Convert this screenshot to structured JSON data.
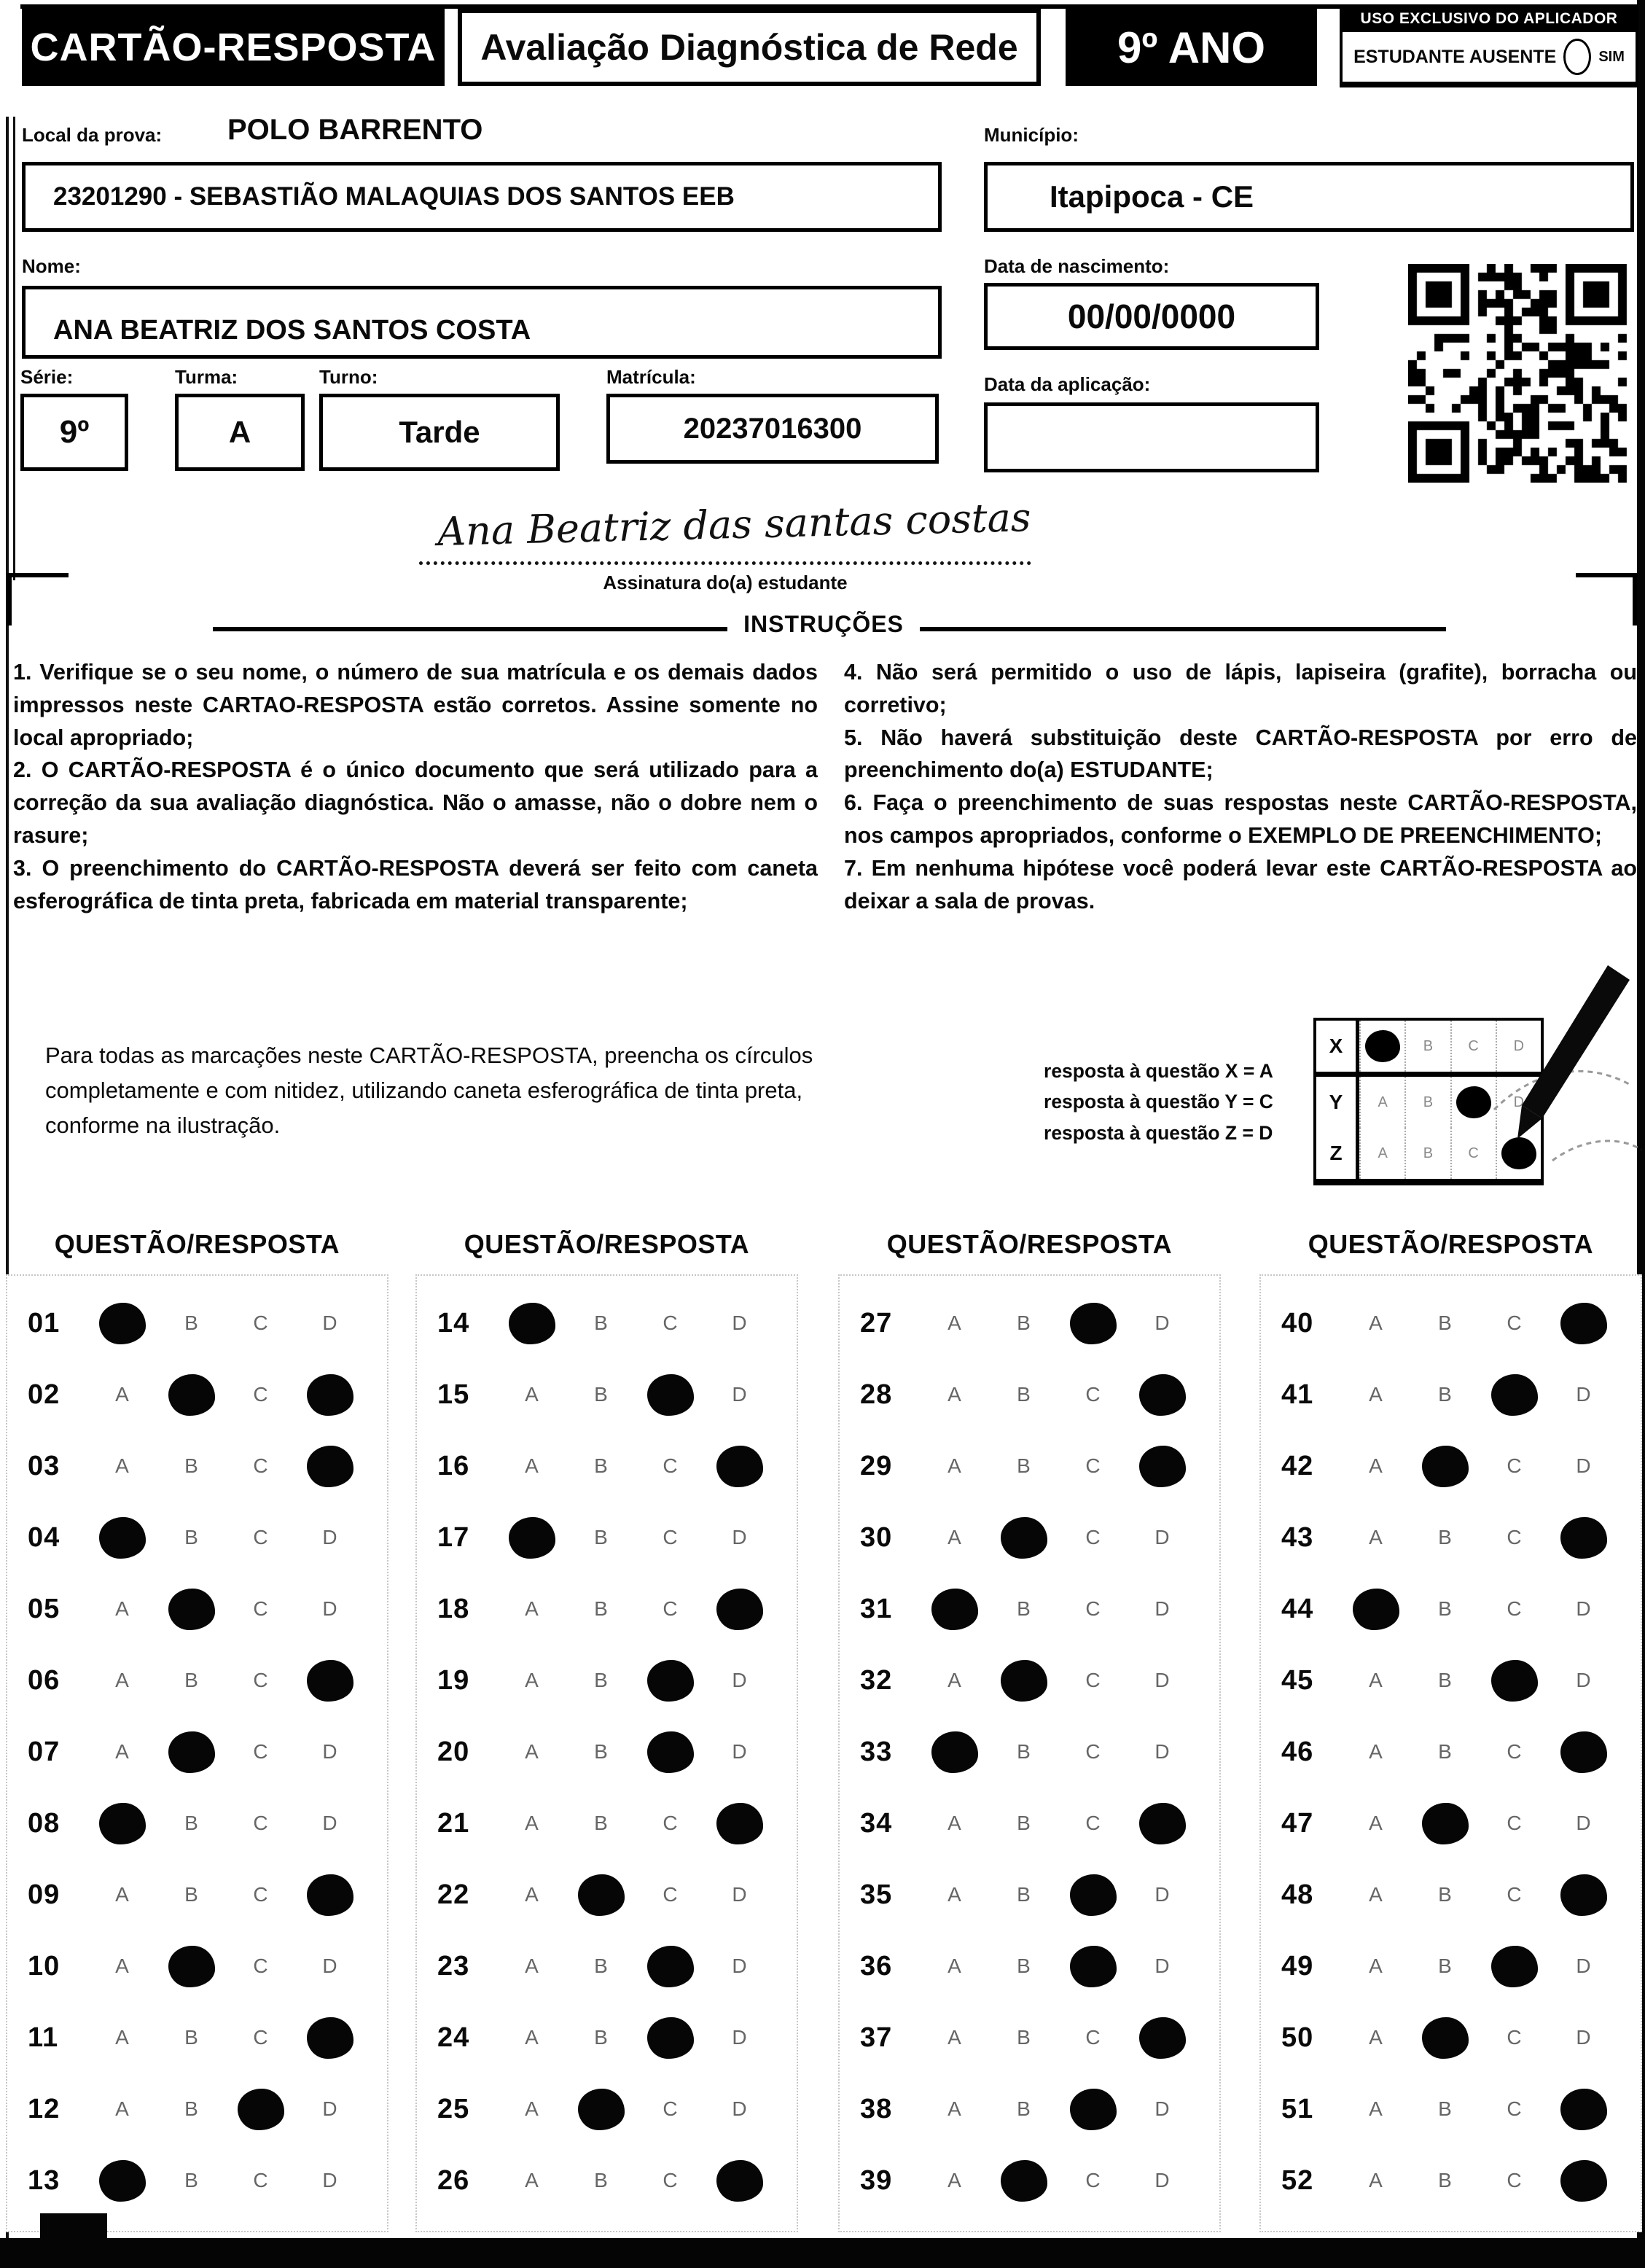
{
  "header": {
    "title": "CARTÃO-RESPOSTA",
    "subtitle": "Avaliação Diagnóstica de Rede",
    "grade": "9º ANO",
    "aplicador": {
      "title": "USO EXCLUSIVO DO APLICADOR",
      "absent_label": "ESTUDANTE AUSENTE",
      "yes_label": "SIM"
    }
  },
  "fields": {
    "local_label": "Local da prova:",
    "local_value": "POLO BARRENTO",
    "school_value": "23201290 - SEBASTIÃO MALAQUIAS DOS SANTOS EEB",
    "municipio_label": "Município:",
    "municipio_value": "Itapipoca - CE",
    "nome_label": "Nome:",
    "nome_value": "ANA BEATRIZ DOS SANTOS COSTA",
    "nascimento_label": "Data de nascimento:",
    "nascimento_value": "00/00/0000",
    "aplicacao_label": "Data da aplicação:",
    "aplicacao_value": "",
    "serie_label": "Série:",
    "serie_value": "9º",
    "turma_label": "Turma:",
    "turma_value": "A",
    "turno_label": "Turno:",
    "turno_value": "Tarde",
    "matricula_label": "Matrícula:",
    "matricula_value": "20237016300"
  },
  "signature": {
    "handwriting": "Ana Beatriz das santas costas",
    "caption": "Assinatura do(a) estudante"
  },
  "instructions": {
    "title": "INSTRUÇÕES",
    "left": [
      "1. Verifique se o seu nome, o número de sua matrícula e os demais dados impressos neste CARTAO-RESPOSTA estão corretos. Assine somente no local apropriado;",
      "2. O CARTÃO-RESPOSTA é o único documento que será utilizado para a correção da sua avaliação diagnóstica. Não o amasse, não o dobre nem o rasure;",
      "3. O preenchimento do CARTÃO-RESPOSTA deverá ser feito com caneta esferográfica de tinta preta, fabricada em material transparente;"
    ],
    "right": [
      "4. Não será permitido o uso de lápis, lapiseira (grafite), borracha ou corretivo;",
      "5. Não haverá substituição deste CARTÃO-RESPOSTA por erro de preenchimento do(a) ESTUDANTE;",
      "6. Faça o preenchimento de suas respostas neste CARTÃO-RESPOSTA, nos campos apropriados, conforme o EXEMPLO DE PREENCHIMENTO;",
      "7. Em nenhuma hipótese você poderá levar este CARTÃO-RESPOSTA ao deixar a sala de provas."
    ]
  },
  "example": {
    "paragraph": "Para todas as marcações neste CARTÃO-RESPOSTA, preencha os círculos completamente e com nitidez, utilizando caneta esferográfica de tinta preta, conforme na ilustração.",
    "legend": [
      "resposta à questão X = A",
      "resposta à questão Y = C",
      "resposta à questão Z = D"
    ],
    "grid": {
      "options": [
        "A",
        "B",
        "C",
        "D"
      ],
      "rows": [
        {
          "label": "X",
          "marked": "A"
        },
        {
          "label": "Y",
          "marked": "C"
        },
        {
          "label": "Z",
          "marked": "D"
        }
      ]
    }
  },
  "answers": {
    "column_header": "QUESTÃO/RESPOSTA",
    "options": [
      "A",
      "B",
      "C",
      "D"
    ],
    "columns": [
      [
        {
          "n": "01",
          "marked": [
            "A"
          ]
        },
        {
          "n": "02",
          "marked": [
            "B",
            "D"
          ]
        },
        {
          "n": "03",
          "marked": [
            "D"
          ]
        },
        {
          "n": "04",
          "marked": [
            "A"
          ]
        },
        {
          "n": "05",
          "marked": [
            "B"
          ]
        },
        {
          "n": "06",
          "marked": [
            "D"
          ]
        },
        {
          "n": "07",
          "marked": [
            "B"
          ]
        },
        {
          "n": "08",
          "marked": [
            "A"
          ]
        },
        {
          "n": "09",
          "marked": [
            "D"
          ]
        },
        {
          "n": "10",
          "marked": [
            "B"
          ]
        },
        {
          "n": "11",
          "marked": [
            "D"
          ]
        },
        {
          "n": "12",
          "marked": [
            "C"
          ]
        },
        {
          "n": "13",
          "marked": [
            "A"
          ]
        }
      ],
      [
        {
          "n": "14",
          "marked": [
            "A"
          ]
        },
        {
          "n": "15",
          "marked": [
            "C"
          ]
        },
        {
          "n": "16",
          "marked": [
            "D"
          ]
        },
        {
          "n": "17",
          "marked": [
            "A"
          ]
        },
        {
          "n": "18",
          "marked": [
            "D"
          ]
        },
        {
          "n": "19",
          "marked": [
            "C"
          ]
        },
        {
          "n": "20",
          "marked": [
            "C"
          ]
        },
        {
          "n": "21",
          "marked": [
            "D"
          ]
        },
        {
          "n": "22",
          "marked": [
            "B"
          ]
        },
        {
          "n": "23",
          "marked": [
            "C"
          ]
        },
        {
          "n": "24",
          "marked": [
            "C"
          ]
        },
        {
          "n": "25",
          "marked": [
            "B"
          ]
        },
        {
          "n": "26",
          "marked": [
            "D"
          ]
        }
      ],
      [
        {
          "n": "27",
          "marked": [
            "C"
          ]
        },
        {
          "n": "28",
          "marked": [
            "D"
          ]
        },
        {
          "n": "29",
          "marked": [
            "D"
          ]
        },
        {
          "n": "30",
          "marked": [
            "B"
          ]
        },
        {
          "n": "31",
          "marked": [
            "A"
          ]
        },
        {
          "n": "32",
          "marked": [
            "B"
          ]
        },
        {
          "n": "33",
          "marked": [
            "A"
          ]
        },
        {
          "n": "34",
          "marked": [
            "D"
          ]
        },
        {
          "n": "35",
          "marked": [
            "C"
          ]
        },
        {
          "n": "36",
          "marked": [
            "C"
          ]
        },
        {
          "n": "37",
          "marked": [
            "D"
          ]
        },
        {
          "n": "38",
          "marked": [
            "C"
          ]
        },
        {
          "n": "39",
          "marked": [
            "B"
          ]
        }
      ],
      [
        {
          "n": "40",
          "marked": [
            "D"
          ]
        },
        {
          "n": "41",
          "marked": [
            "C"
          ]
        },
        {
          "n": "42",
          "marked": [
            "B"
          ]
        },
        {
          "n": "43",
          "marked": [
            "D"
          ]
        },
        {
          "n": "44",
          "marked": [
            "A"
          ]
        },
        {
          "n": "45",
          "marked": [
            "C"
          ]
        },
        {
          "n": "46",
          "marked": [
            "D"
          ]
        },
        {
          "n": "47",
          "marked": [
            "B"
          ]
        },
        {
          "n": "48",
          "marked": [
            "D"
          ]
        },
        {
          "n": "49",
          "marked": [
            "C"
          ]
        },
        {
          "n": "50",
          "marked": [
            "B"
          ]
        },
        {
          "n": "51",
          "marked": [
            "D"
          ]
        },
        {
          "n": "52",
          "marked": [
            "D"
          ]
        }
      ]
    ]
  }
}
